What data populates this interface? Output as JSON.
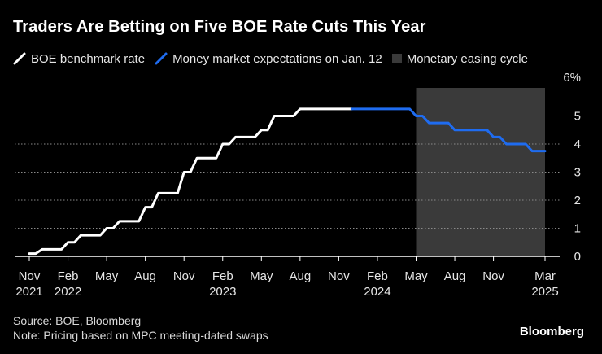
{
  "chart_data": {
    "type": "line",
    "title": "Traders Are Betting on Five BOE Rate Cuts This Year",
    "legend": [
      {
        "name": "BOE benchmark rate",
        "color": "#ffffff",
        "kind": "line"
      },
      {
        "name": "Money market expectations on Jan. 12",
        "color": "#1f6cf0",
        "kind": "line"
      },
      {
        "name": "Monetary easing cycle",
        "color": "#3a3a3a",
        "kind": "box"
      }
    ],
    "x_unit": "months since Nov 2021",
    "xlim": [
      0,
      40
    ],
    "ylim": [
      0,
      6
    ],
    "y_axis_side": "right",
    "y_ticks": [
      {
        "value": 0,
        "label": "0"
      },
      {
        "value": 1,
        "label": "1"
      },
      {
        "value": 2,
        "label": "2"
      },
      {
        "value": 3,
        "label": "3"
      },
      {
        "value": 4,
        "label": "4"
      },
      {
        "value": 5,
        "label": "5"
      },
      {
        "value": 6,
        "label": "6%"
      }
    ],
    "x_ticks": [
      {
        "value": 0,
        "label": "Nov",
        "year": "2021"
      },
      {
        "value": 3,
        "label": "Feb",
        "year": "2022"
      },
      {
        "value": 6,
        "label": "May",
        "year": ""
      },
      {
        "value": 9,
        "label": "Aug",
        "year": ""
      },
      {
        "value": 12,
        "label": "Nov",
        "year": ""
      },
      {
        "value": 15,
        "label": "Feb",
        "year": "2023"
      },
      {
        "value": 18,
        "label": "May",
        "year": ""
      },
      {
        "value": 21,
        "label": "Aug",
        "year": ""
      },
      {
        "value": 24,
        "label": "Nov",
        "year": ""
      },
      {
        "value": 27,
        "label": "Feb",
        "year": "2024"
      },
      {
        "value": 30,
        "label": "May",
        "year": ""
      },
      {
        "value": 33,
        "label": "Aug",
        "year": ""
      },
      {
        "value": 36,
        "label": "Nov",
        "year": ""
      },
      {
        "value": 40,
        "label": "Mar",
        "year": "2025"
      }
    ],
    "shaded_region": {
      "x_start": 30,
      "x_end": 40,
      "label": "Monetary easing cycle"
    },
    "grid": true,
    "series": [
      {
        "name": "BOE benchmark rate",
        "color": "#ffffff",
        "points": [
          [
            0,
            0.1
          ],
          [
            1,
            0.25
          ],
          [
            2,
            0.25
          ],
          [
            3,
            0.5
          ],
          [
            4,
            0.75
          ],
          [
            5,
            0.75
          ],
          [
            6,
            1.0
          ],
          [
            7,
            1.25
          ],
          [
            8,
            1.25
          ],
          [
            9,
            1.75
          ],
          [
            10,
            2.25
          ],
          [
            11,
            2.25
          ],
          [
            12,
            3.0
          ],
          [
            13,
            3.5
          ],
          [
            14,
            3.5
          ],
          [
            15,
            4.0
          ],
          [
            16,
            4.25
          ],
          [
            17,
            4.25
          ],
          [
            18,
            4.5
          ],
          [
            19,
            5.0
          ],
          [
            20,
            5.0
          ],
          [
            21,
            5.25
          ],
          [
            22,
            5.25
          ],
          [
            23,
            5.25
          ],
          [
            24,
            5.25
          ],
          [
            25,
            5.25
          ]
        ]
      },
      {
        "name": "Money market expectations on Jan. 12",
        "color": "#1f6cf0",
        "points": [
          [
            25,
            5.25
          ],
          [
            26,
            5.25
          ],
          [
            27,
            5.25
          ],
          [
            28,
            5.25
          ],
          [
            29,
            5.25
          ],
          [
            30,
            5.0
          ],
          [
            31,
            4.75
          ],
          [
            32,
            4.75
          ],
          [
            33,
            4.5
          ],
          [
            34,
            4.5
          ],
          [
            35,
            4.5
          ],
          [
            36,
            4.25
          ],
          [
            37,
            4.0
          ],
          [
            38,
            4.0
          ],
          [
            39,
            3.75
          ],
          [
            40,
            3.75
          ]
        ]
      }
    ]
  },
  "footer": {
    "source": "Source: BOE, Bloomberg",
    "note": "Note: Pricing based on MPC meeting-dated swaps"
  },
  "brand": "Bloomberg"
}
